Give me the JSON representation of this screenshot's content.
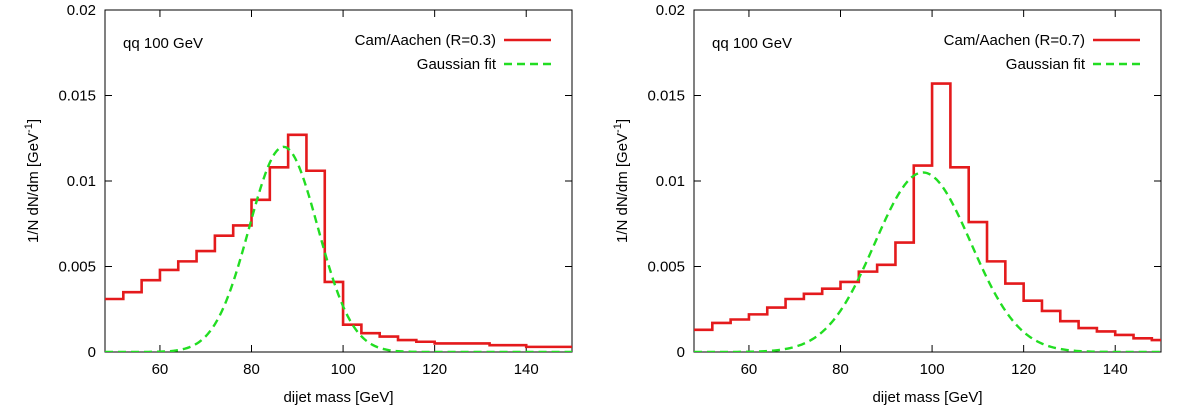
{
  "chart_data": [
    {
      "type": "line",
      "annotation": "qq 100 GeV",
      "xlabel": "dijet mass [GeV]",
      "ylabel_main": "1/N dN/dm [GeV",
      "ylabel_sup": "-1",
      "ylabel_close": "]",
      "xlim": [
        48,
        150
      ],
      "ylim": [
        0,
        0.02
      ],
      "xticks": [
        60,
        80,
        100,
        120,
        140
      ],
      "xtick_labels": [
        "60",
        "80",
        "100",
        "120",
        "140"
      ],
      "yticks": [
        0,
        0.005,
        0.01,
        0.015,
        0.02
      ],
      "ytick_labels": [
        "0",
        "0.005",
        "0.01",
        "0.015",
        "0.02"
      ],
      "legend_position": "top-right",
      "series": [
        {
          "name": "Cam/Aachen (R=0.3)",
          "style": "step",
          "color": "#e41a1c",
          "bin_width": 4,
          "x": [
            48,
            52,
            56,
            60,
            64,
            68,
            72,
            76,
            80,
            84,
            88,
            92,
            96,
            100,
            104,
            108,
            112,
            116,
            120,
            124,
            128,
            132,
            136,
            140,
            144,
            148
          ],
          "y": [
            0.0031,
            0.0035,
            0.0042,
            0.0048,
            0.0053,
            0.0059,
            0.0068,
            0.0074,
            0.0089,
            0.0108,
            0.0127,
            0.0106,
            0.0041,
            0.0016,
            0.0011,
            0.0009,
            0.0007,
            0.0006,
            0.0005,
            0.0005,
            0.0005,
            0.0004,
            0.0004,
            0.0003,
            0.0003,
            0.0003
          ]
        },
        {
          "name": "Gaussian fit",
          "style": "dashed-curve",
          "color": "#22dd22",
          "amplitude": 0.012,
          "mean": 87,
          "sigma": 7.5
        }
      ]
    },
    {
      "type": "line",
      "annotation": "qq 100 GeV",
      "xlabel": "dijet mass [GeV]",
      "ylabel_main": "1/N dN/dm [GeV",
      "ylabel_sup": "-1",
      "ylabel_close": "]",
      "xlim": [
        48,
        150
      ],
      "ylim": [
        0,
        0.02
      ],
      "xticks": [
        60,
        80,
        100,
        120,
        140
      ],
      "xtick_labels": [
        "60",
        "80",
        "100",
        "120",
        "140"
      ],
      "yticks": [
        0,
        0.005,
        0.01,
        0.015,
        0.02
      ],
      "ytick_labels": [
        "0",
        "0.005",
        "0.01",
        "0.015",
        "0.02"
      ],
      "legend_position": "top-right",
      "series": [
        {
          "name": "Cam/Aachen (R=0.7)",
          "style": "step",
          "color": "#e41a1c",
          "bin_width": 4,
          "x": [
            48,
            52,
            56,
            60,
            64,
            68,
            72,
            76,
            80,
            84,
            88,
            92,
            96,
            100,
            104,
            108,
            112,
            116,
            120,
            124,
            128,
            132,
            136,
            140,
            144,
            148
          ],
          "y": [
            0.0013,
            0.0017,
            0.0019,
            0.0022,
            0.0026,
            0.0031,
            0.0034,
            0.0037,
            0.0041,
            0.0047,
            0.0051,
            0.0064,
            0.0109,
            0.0157,
            0.0108,
            0.0076,
            0.0053,
            0.004,
            0.003,
            0.0024,
            0.0018,
            0.0014,
            0.0012,
            0.001,
            0.0008,
            0.0007
          ]
        },
        {
          "name": "Gaussian fit",
          "style": "dashed-curve",
          "color": "#22dd22",
          "amplitude": 0.0105,
          "mean": 98,
          "sigma": 10.5
        }
      ]
    }
  ]
}
